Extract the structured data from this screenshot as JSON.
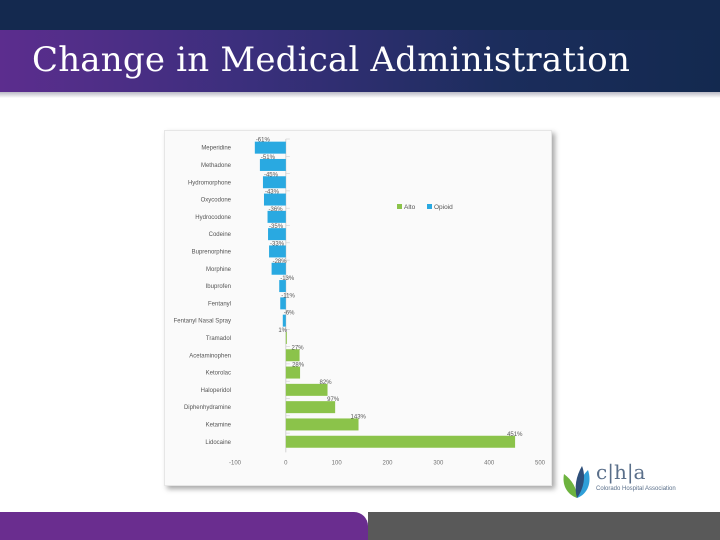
{
  "slide": {
    "title": "Change in Medical Administration"
  },
  "logo": {
    "mark": "c|h|a",
    "subtitle": "Colorado Hospital Association",
    "colors": [
      "#6db33f",
      "#2f9fd8",
      "#2e4f7a"
    ]
  },
  "colors": {
    "title_band": "#3a2f7c",
    "bottom_left": "#6a2d8f",
    "bottom_right": "#595959",
    "alto": "#8bc34a",
    "opioid": "#29a9e1"
  },
  "chart_data": {
    "type": "bar",
    "orientation": "horizontal",
    "categories": [
      "Meperidine",
      "Methadone",
      "Hydromorphone",
      "Oxycodone",
      "Hydrocodone",
      "Codeine",
      "Buprenorphine",
      "Morphine",
      "Ibuprofen",
      "Fentanyl",
      "Fentanyl Nasal Spray",
      "Tramadol",
      "Acetaminophen",
      "Ketorolac",
      "Haloperidol",
      "Diphenhydramine",
      "Ketamine",
      "Lidocaine"
    ],
    "values": [
      -61,
      -51,
      -45,
      -43,
      -36,
      -35,
      -33,
      -28,
      -13,
      -11,
      -6,
      1,
      27,
      28,
      82,
      97,
      143,
      451
    ],
    "value_labels": [
      "-61%",
      "-51%",
      "-45%",
      "-43%",
      "-36%",
      "-35%",
      "-33%",
      "-28%",
      "-13%",
      "-11%",
      "-6%",
      "1%",
      "27%",
      "28%",
      "82%",
      "97%",
      "143%",
      "451%"
    ],
    "groups": [
      "Opioid",
      "Opioid",
      "Opioid",
      "Opioid",
      "Opioid",
      "Opioid",
      "Opioid",
      "Opioid",
      "Opioid",
      "Opioid",
      "Opioid",
      "Alto",
      "Alto",
      "Alto",
      "Alto",
      "Alto",
      "Alto",
      "Alto"
    ],
    "legend": [
      {
        "name": "Alto",
        "color": "#8bc34a"
      },
      {
        "name": "Opioid",
        "color": "#29a9e1"
      }
    ],
    "legend_position": "top-right",
    "xticks": [
      "-100",
      "0",
      "100",
      "200",
      "300",
      "400",
      "500"
    ],
    "xlim": [
      -100,
      500
    ],
    "grid": false,
    "title": "",
    "xlabel": "",
    "ylabel": ""
  }
}
